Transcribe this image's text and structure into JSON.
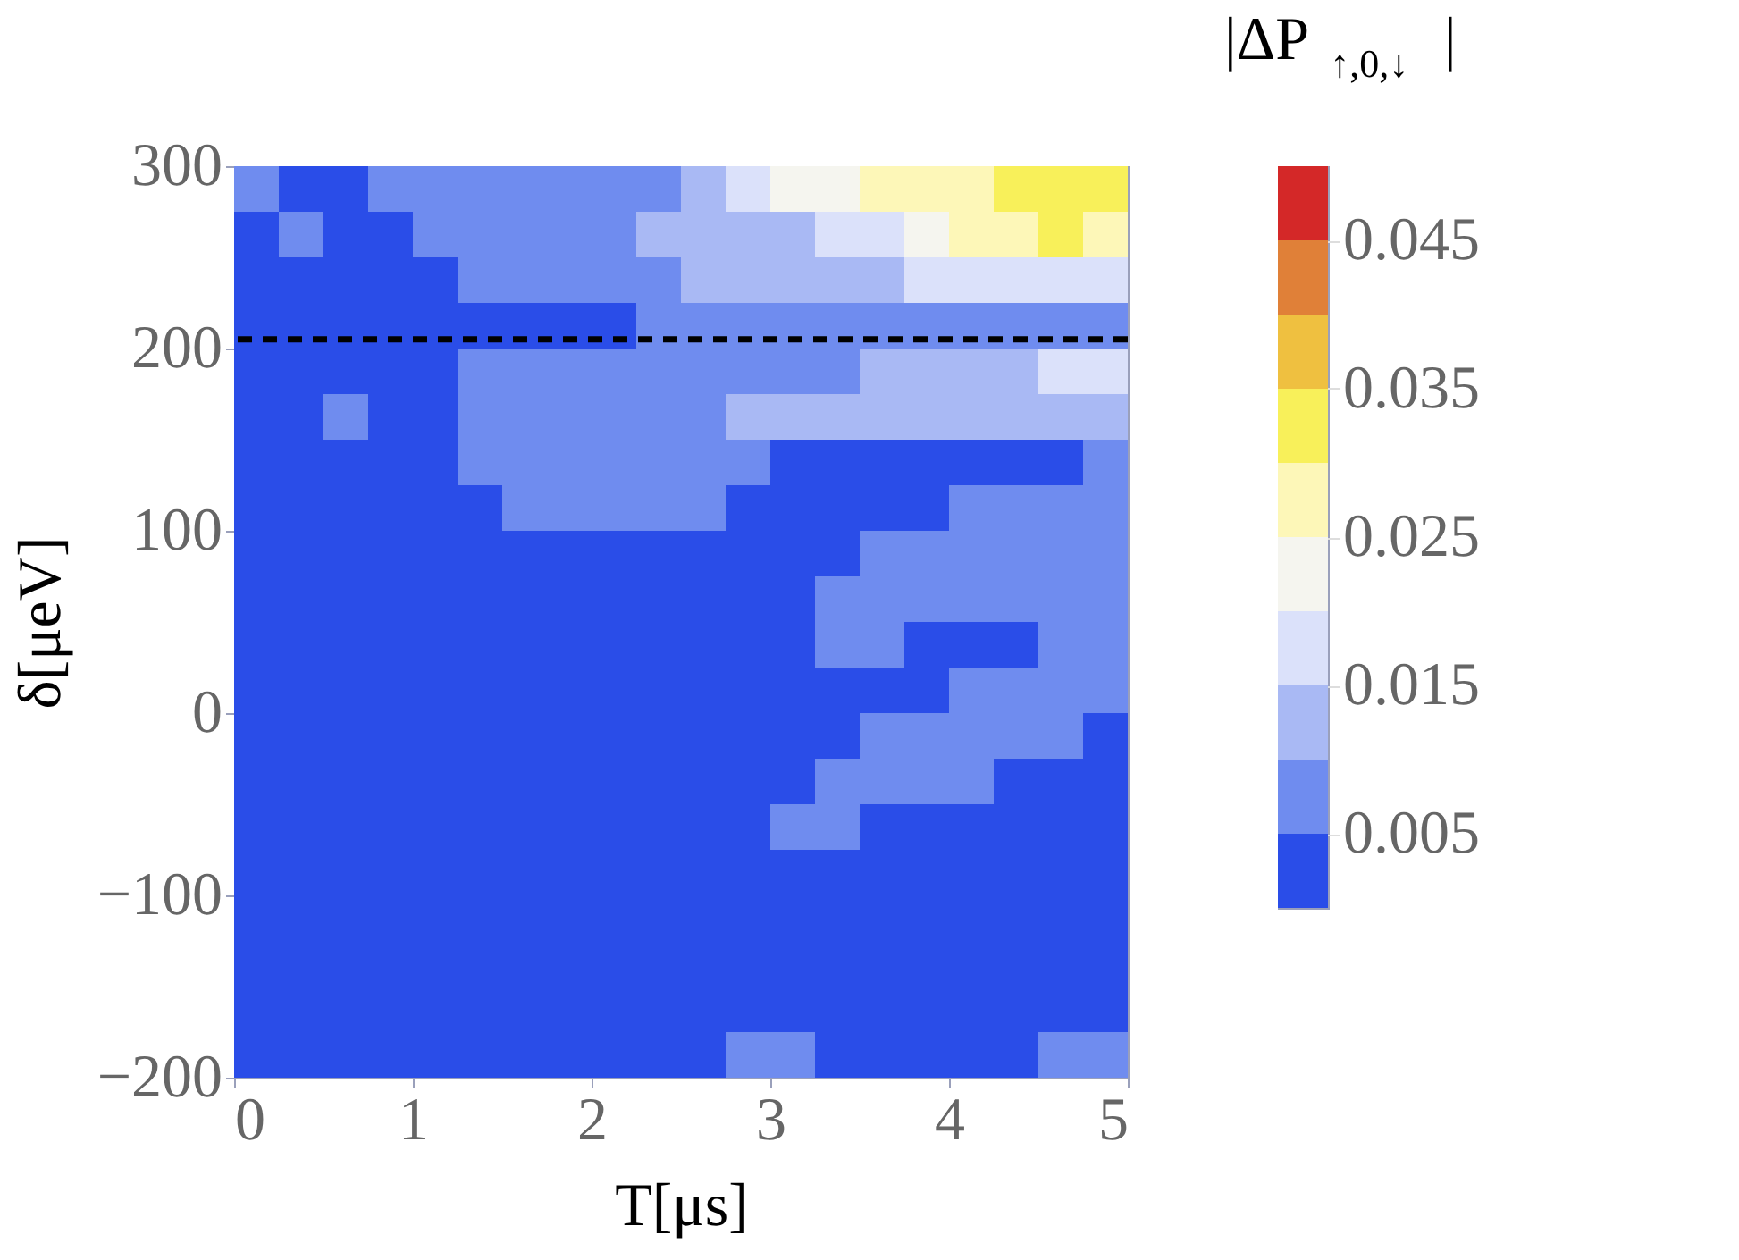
{
  "chart_data": {
    "type": "heatmap",
    "xlabel": "T[μs]",
    "ylabel": "δ[μeV]",
    "clabel": "|ΔP$_{↑,0,↓}$|",
    "xlim": [
      0,
      5
    ],
    "xticks": [
      0,
      1,
      2,
      3,
      4,
      5
    ],
    "ylim": [
      -200,
      300
    ],
    "yticks": [
      -200,
      -100,
      0,
      100,
      200,
      300
    ],
    "clim": [
      0,
      0.05
    ],
    "cticks": [
      0.005,
      0.015,
      0.025,
      0.035,
      0.045
    ],
    "colors": [
      "#2a4de8",
      "#6f8cef",
      "#a9b9f4",
      "#dbe1fa",
      "#f5f5ef",
      "#fdf7b8",
      "#f8f05a",
      "#efc040",
      "#e08038",
      "#d42828"
    ],
    "cells": [
      [
        0.0075,
        0.0025,
        0.0025,
        0.0075,
        0.0075,
        0.0075,
        0.0075,
        0.0075,
        0.0075,
        0.0075,
        0.0125,
        0.0175,
        0.0225,
        0.0225,
        0.0275,
        0.0275,
        0.0275,
        0.0325,
        0.0325,
        0.0325
      ],
      [
        0.0025,
        0.0075,
        0.0025,
        0.0025,
        0.0075,
        0.0075,
        0.0075,
        0.0075,
        0.0075,
        0.0125,
        0.0125,
        0.0125,
        0.0125,
        0.0175,
        0.0175,
        0.0225,
        0.0275,
        0.0275,
        0.0325,
        0.0275
      ],
      [
        0.0025,
        0.0025,
        0.0025,
        0.0025,
        0.0025,
        0.0075,
        0.0075,
        0.0075,
        0.0075,
        0.0075,
        0.0125,
        0.0125,
        0.0125,
        0.0125,
        0.0125,
        0.0175,
        0.0175,
        0.0175,
        0.0175,
        0.0175
      ],
      [
        0.0025,
        0.0025,
        0.0025,
        0.0025,
        0.0025,
        0.0025,
        0.0025,
        0.0025,
        0.0025,
        0.0075,
        0.0075,
        0.0075,
        0.0075,
        0.0075,
        0.0075,
        0.0075,
        0.0075,
        0.0075,
        0.0075,
        0.0075
      ],
      [
        0.0025,
        0.0025,
        0.0025,
        0.0025,
        0.0025,
        0.0075,
        0.0075,
        0.0075,
        0.0075,
        0.0075,
        0.0075,
        0.0075,
        0.0075,
        0.0075,
        0.0125,
        0.0125,
        0.0125,
        0.0125,
        0.0175,
        0.0175
      ],
      [
        0.0025,
        0.0025,
        0.0075,
        0.0025,
        0.0025,
        0.0075,
        0.0075,
        0.0075,
        0.0075,
        0.0075,
        0.0075,
        0.0125,
        0.0125,
        0.0125,
        0.0125,
        0.0125,
        0.0125,
        0.0125,
        0.0125,
        0.0125
      ],
      [
        0.0025,
        0.0025,
        0.0025,
        0.0025,
        0.0025,
        0.0075,
        0.0075,
        0.0075,
        0.0075,
        0.0075,
        0.0075,
        0.0075,
        0.0025,
        0.0025,
        0.0025,
        0.0025,
        0.0025,
        0.0025,
        0.0025,
        0.0075
      ],
      [
        0.0025,
        0.0025,
        0.0025,
        0.0025,
        0.0025,
        0.0025,
        0.0075,
        0.0075,
        0.0075,
        0.0075,
        0.0075,
        0.0025,
        0.0025,
        0.0025,
        0.0025,
        0.0025,
        0.0075,
        0.0075,
        0.0075,
        0.0075
      ],
      [
        0.0025,
        0.0025,
        0.0025,
        0.0025,
        0.0025,
        0.0025,
        0.0025,
        0.0025,
        0.0025,
        0.0025,
        0.0025,
        0.0025,
        0.0025,
        0.0025,
        0.0075,
        0.0075,
        0.0075,
        0.0075,
        0.0075,
        0.0075
      ],
      [
        0.0025,
        0.0025,
        0.0025,
        0.0025,
        0.0025,
        0.0025,
        0.0025,
        0.0025,
        0.0025,
        0.0025,
        0.0025,
        0.0025,
        0.0025,
        0.0075,
        0.0075,
        0.0075,
        0.0075,
        0.0075,
        0.0075,
        0.0075
      ],
      [
        0.0025,
        0.0025,
        0.0025,
        0.0025,
        0.0025,
        0.0025,
        0.0025,
        0.0025,
        0.0025,
        0.0025,
        0.0025,
        0.0025,
        0.0025,
        0.0075,
        0.0075,
        0.0025,
        0.0025,
        0.0025,
        0.0075,
        0.0075
      ],
      [
        0.0025,
        0.0025,
        0.0025,
        0.0025,
        0.0025,
        0.0025,
        0.0025,
        0.0025,
        0.0025,
        0.0025,
        0.0025,
        0.0025,
        0.0025,
        0.0025,
        0.0025,
        0.0025,
        0.0075,
        0.0075,
        0.0075,
        0.0075
      ],
      [
        0.0025,
        0.0025,
        0.0025,
        0.0025,
        0.0025,
        0.0025,
        0.0025,
        0.0025,
        0.0025,
        0.0025,
        0.0025,
        0.0025,
        0.0025,
        0.0025,
        0.0075,
        0.0075,
        0.0075,
        0.0075,
        0.0075,
        0.0025
      ],
      [
        0.0025,
        0.0025,
        0.0025,
        0.0025,
        0.0025,
        0.0025,
        0.0025,
        0.0025,
        0.0025,
        0.0025,
        0.0025,
        0.0025,
        0.0025,
        0.0075,
        0.0075,
        0.0075,
        0.0075,
        0.0025,
        0.0025,
        0.0025
      ],
      [
        0.0025,
        0.0025,
        0.0025,
        0.0025,
        0.0025,
        0.0025,
        0.0025,
        0.0025,
        0.0025,
        0.0025,
        0.0025,
        0.0025,
        0.0075,
        0.0075,
        0.0025,
        0.0025,
        0.0025,
        0.0025,
        0.0025,
        0.0025
      ],
      [
        0.0025,
        0.0025,
        0.0025,
        0.0025,
        0.0025,
        0.0025,
        0.0025,
        0.0025,
        0.0025,
        0.0025,
        0.0025,
        0.0025,
        0.0025,
        0.0025,
        0.0025,
        0.0025,
        0.0025,
        0.0025,
        0.0025,
        0.0025
      ],
      [
        0.0025,
        0.0025,
        0.0025,
        0.0025,
        0.0025,
        0.0025,
        0.0025,
        0.0025,
        0.0025,
        0.0025,
        0.0025,
        0.0025,
        0.0025,
        0.0025,
        0.0025,
        0.0025,
        0.0025,
        0.0025,
        0.0025,
        0.0025
      ],
      [
        0.0025,
        0.0025,
        0.0025,
        0.0025,
        0.0025,
        0.0025,
        0.0025,
        0.0025,
        0.0025,
        0.0025,
        0.0025,
        0.0025,
        0.0025,
        0.0025,
        0.0025,
        0.0025,
        0.0025,
        0.0025,
        0.0025,
        0.0025
      ],
      [
        0.0025,
        0.0025,
        0.0025,
        0.0025,
        0.0025,
        0.0025,
        0.0025,
        0.0025,
        0.0025,
        0.0025,
        0.0025,
        0.0025,
        0.0025,
        0.0025,
        0.0025,
        0.0025,
        0.0025,
        0.0025,
        0.0025,
        0.0025
      ],
      [
        0.0025,
        0.0025,
        0.0025,
        0.0025,
        0.0025,
        0.0025,
        0.0025,
        0.0025,
        0.0025,
        0.0025,
        0.0025,
        0.0075,
        0.0075,
        0.0025,
        0.0025,
        0.0025,
        0.0025,
        0.0025,
        0.0075,
        0.0075
      ]
    ],
    "ref_lines": [
      {
        "axis": "y",
        "value": 205,
        "color": "#000000",
        "line_style": "dashed"
      }
    ],
    "grid": false,
    "legend": false
  }
}
